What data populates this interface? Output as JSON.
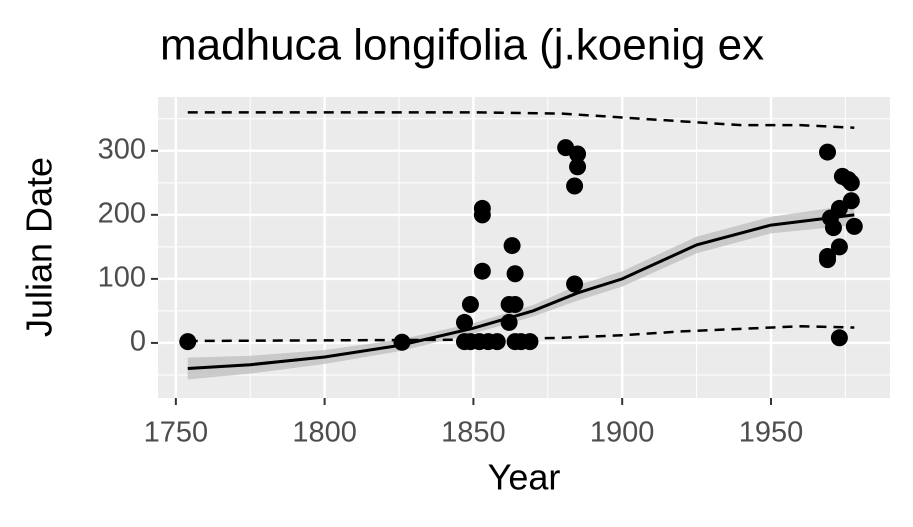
{
  "chart_data": {
    "type": "scatter",
    "title": "madhuca longifolia (j.koenig ex",
    "x_label": "Year",
    "y_label": "Julian Date",
    "xlim": [
      1744,
      1990
    ],
    "ylim": [
      -86,
      384
    ],
    "xticks": [
      1750,
      1800,
      1850,
      1900,
      1950
    ],
    "yticks": [
      0,
      100,
      200,
      300
    ],
    "x_minor": [
      1775,
      1825,
      1875,
      1925,
      1975
    ],
    "y_minor": [
      -50,
      50,
      150,
      250,
      350
    ],
    "grid": true,
    "panel_color": "#ebebeb",
    "points": {
      "color": "#000000",
      "x": [
        1754,
        1826,
        1847,
        1847,
        1849,
        1849,
        1852,
        1853,
        1853,
        1853,
        1855,
        1858,
        1862,
        1862,
        1863,
        1864,
        1864,
        1864,
        1866,
        1869,
        1881,
        1884,
        1884,
        1885,
        1885,
        1969,
        1969,
        1969,
        1970,
        1971,
        1973,
        1973,
        1973,
        1974,
        1976,
        1977,
        1977,
        1978
      ],
      "values": [
        2,
        1,
        32,
        2,
        60,
        2,
        2,
        210,
        200,
        112,
        2,
        2,
        32,
        60,
        152,
        60,
        108,
        2,
        2,
        2,
        305,
        245,
        92,
        295,
        275,
        298,
        135,
        130,
        195,
        180,
        150,
        8,
        210,
        260,
        255,
        222,
        250,
        182
      ]
    },
    "smooth": {
      "color": "#000000",
      "band_color": "#bdbdbd",
      "x": [
        1754,
        1775,
        1800,
        1825,
        1850,
        1870,
        1885,
        1900,
        1925,
        1950,
        1978
      ],
      "values": [
        -40,
        -34,
        -22,
        -4,
        23,
        50,
        78,
        100,
        153,
        184,
        200
      ],
      "lower": [
        -57,
        -48,
        -33,
        -13,
        15,
        41,
        66,
        88,
        140,
        171,
        184
      ],
      "upper": [
        -23,
        -20,
        -11,
        5,
        31,
        59,
        90,
        112,
        166,
        197,
        216
      ]
    },
    "quantiles": [
      {
        "color": "#000000",
        "linetype": "dashed",
        "x": [
          1754,
          1800,
          1850,
          1880,
          1900,
          1920,
          1940,
          1960,
          1978
        ],
        "values": [
          360,
          360,
          360,
          358,
          352,
          346,
          340,
          340,
          336
        ]
      },
      {
        "color": "#000000",
        "linetype": "dashed",
        "x": [
          1754,
          1800,
          1850,
          1880,
          1900,
          1920,
          1940,
          1960,
          1978
        ],
        "values": [
          3,
          4,
          5,
          8,
          12,
          18,
          22,
          26,
          24
        ]
      }
    ]
  }
}
